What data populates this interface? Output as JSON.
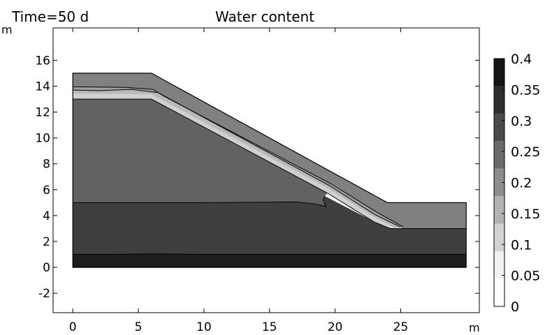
{
  "chart_data": {
    "type": "heatmap",
    "title": "Water content",
    "subtitle": "Time=50 d",
    "xlabel": "m",
    "ylabel": "m",
    "xlim": [
      -1.5,
      31
    ],
    "ylim": [
      -3.5,
      18.5
    ],
    "xticks": [
      0,
      5,
      10,
      15,
      20,
      25
    ],
    "yticks": [
      -2,
      0,
      2,
      4,
      6,
      8,
      10,
      12,
      14,
      16
    ],
    "grid": false,
    "colorbar": {
      "levels": [
        "0",
        "0.05",
        "0.1",
        "0.15",
        "0.2",
        "0.25",
        "0.3",
        "0.35",
        "0.4"
      ],
      "colors": [
        "#ffffff",
        "#f0f0f0",
        "#d2d2d2",
        "#b2b2b2",
        "#8d8d8d",
        "#6a6a6a",
        "#4a4a4a",
        "#2e2e2e",
        "#141414"
      ]
    },
    "regions": [
      {
        "name": "bottom-layer",
        "color": "#1e1e1e",
        "points": [
          [
            0,
            0
          ],
          [
            30,
            0
          ],
          [
            30,
            1
          ],
          [
            20,
            1
          ],
          [
            15,
            1
          ],
          [
            10,
            1
          ],
          [
            6,
            1.05
          ],
          [
            3,
            1
          ],
          [
            0,
            1
          ]
        ]
      },
      {
        "name": "lower-zone",
        "color": "#3f3f3f",
        "points": [
          [
            0,
            1
          ],
          [
            3,
            1
          ],
          [
            6,
            1.05
          ],
          [
            10,
            1
          ],
          [
            15,
            1
          ],
          [
            20,
            1
          ],
          [
            30,
            1
          ],
          [
            30,
            3
          ],
          [
            24.2,
            3
          ],
          [
            23,
            3.5
          ],
          [
            19.2,
            5.5
          ],
          [
            19.1,
            5.2
          ],
          [
            19.3,
            4.7
          ],
          [
            18.5,
            4.9
          ],
          [
            17,
            5.05
          ],
          [
            10,
            5
          ],
          [
            5,
            5
          ],
          [
            0,
            5
          ]
        ]
      },
      {
        "name": "core-zone",
        "color": "#626262",
        "points": [
          [
            0,
            5
          ],
          [
            5,
            5
          ],
          [
            10,
            5
          ],
          [
            17,
            5.05
          ],
          [
            18.5,
            4.9
          ],
          [
            19.3,
            4.7
          ],
          [
            19.1,
            5.2
          ],
          [
            19.2,
            5.5
          ],
          [
            19.4,
            5.75
          ],
          [
            6,
            13
          ],
          [
            0,
            13
          ]
        ]
      },
      {
        "name": "wet-band",
        "color": "#d0d0d0",
        "points": [
          [
            0,
            13
          ],
          [
            6,
            13
          ],
          [
            19.4,
            5.75
          ],
          [
            23,
            3.5
          ],
          [
            24.2,
            3
          ],
          [
            24.6,
            3.05
          ],
          [
            23,
            3.9
          ],
          [
            19.5,
            6.1
          ],
          [
            6,
            13.4
          ],
          [
            0,
            13.45
          ]
        ]
      },
      {
        "name": "mid-band",
        "color": "#b8b8b8",
        "points": [
          [
            0,
            13.45
          ],
          [
            6,
            13.4
          ],
          [
            19.5,
            6.1
          ],
          [
            23,
            3.9
          ],
          [
            24.6,
            3.05
          ],
          [
            25,
            3.1
          ],
          [
            23,
            4.1
          ],
          [
            19.6,
            6.3
          ],
          [
            6.5,
            13.5
          ],
          [
            4.5,
            13.75
          ],
          [
            2,
            13.65
          ],
          [
            0,
            13.7
          ]
        ]
      },
      {
        "name": "cover-band",
        "color": "#a0a0a0",
        "points": [
          [
            0,
            13.7
          ],
          [
            2,
            13.65
          ],
          [
            4.5,
            13.75
          ],
          [
            6.5,
            13.5
          ],
          [
            19.6,
            6.3
          ],
          [
            23,
            4.1
          ],
          [
            25,
            3.1
          ],
          [
            25.2,
            3.12
          ],
          [
            23.2,
            4.25
          ],
          [
            19.7,
            6.45
          ],
          [
            7,
            13.2
          ],
          [
            6.1,
            13.75
          ],
          [
            4,
            13.9
          ],
          [
            0,
            13.95
          ]
        ]
      },
      {
        "name": "surface-layer",
        "color": "#808080",
        "points": [
          [
            0,
            13.95
          ],
          [
            4,
            13.9
          ],
          [
            6.1,
            13.75
          ],
          [
            7,
            13.2
          ],
          [
            19.7,
            6.45
          ],
          [
            23.2,
            4.25
          ],
          [
            25.2,
            3.12
          ],
          [
            25,
            3
          ],
          [
            30,
            3
          ],
          [
            30,
            5
          ],
          [
            24,
            5
          ],
          [
            6,
            15
          ],
          [
            0,
            15
          ]
        ]
      }
    ],
    "boundaries": [
      [
        [
          0,
          1
        ],
        [
          3,
          1
        ],
        [
          6,
          1.05
        ],
        [
          10,
          1
        ],
        [
          15,
          1
        ],
        [
          20,
          1
        ],
        [
          30,
          1
        ]
      ],
      [
        [
          0,
          5
        ],
        [
          5,
          5
        ],
        [
          10,
          5
        ],
        [
          17,
          5.05
        ],
        [
          18.5,
          4.9
        ],
        [
          19.3,
          4.7
        ],
        [
          19.1,
          5.2
        ],
        [
          19.2,
          5.5
        ]
      ],
      [
        [
          0,
          13
        ],
        [
          6,
          13
        ],
        [
          19.4,
          5.75
        ],
        [
          23,
          3.5
        ],
        [
          24.2,
          3
        ],
        [
          30,
          3
        ]
      ],
      [
        [
          0,
          13.7
        ],
        [
          2,
          13.65
        ],
        [
          4.5,
          13.75
        ],
        [
          6.5,
          13.5
        ],
        [
          19.6,
          6.3
        ],
        [
          23,
          4.1
        ],
        [
          25,
          3.1
        ]
      ],
      [
        [
          0,
          13.95
        ],
        [
          4,
          13.9
        ],
        [
          6.1,
          13.75
        ],
        [
          7,
          13.2
        ],
        [
          19.7,
          6.45
        ],
        [
          23.2,
          4.25
        ],
        [
          25.2,
          3.12
        ]
      ]
    ],
    "outline": [
      [
        0,
        0
      ],
      [
        30,
        0
      ],
      [
        30,
        5
      ],
      [
        24,
        5
      ],
      [
        6,
        15
      ],
      [
        0,
        15
      ]
    ]
  }
}
